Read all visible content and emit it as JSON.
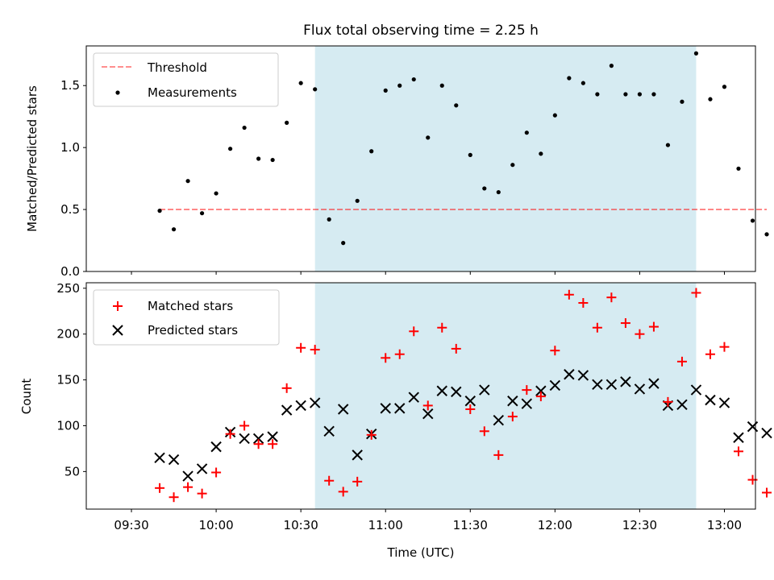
{
  "title": "Flux total observing time = 2.25 h",
  "chart_data": [
    {
      "type": "scatter",
      "panel": "top",
      "title": "Flux total observing time = 2.25 h",
      "ylabel": "Matched/Predicted stars",
      "xlabel": "",
      "xlim": [
        -16,
        221
      ],
      "ylim": [
        0,
        1.82
      ],
      "yticks": [
        0.0,
        0.5,
        1.0,
        1.5
      ],
      "ytick_labels": [
        "0.0",
        "0.5",
        "1.0",
        "1.5"
      ],
      "shaded_span": [
        65,
        200
      ],
      "shade_color": "#add8e6",
      "threshold": {
        "label": "Threshold",
        "value": 0.5,
        "x_range": [
          10,
          225
        ],
        "color": "#ff0000"
      },
      "series": [
        {
          "name": "Measurements",
          "marker": "dot",
          "color": "#000000",
          "x": [
            10,
            15,
            20,
            25,
            30,
            35,
            40,
            45,
            50,
            55,
            60,
            65,
            70,
            75,
            80,
            85,
            90,
            95,
            100,
            105,
            110,
            115,
            120,
            125,
            130,
            135,
            140,
            145,
            150,
            155,
            160,
            165,
            170,
            175,
            180,
            185,
            190,
            195,
            200,
            205,
            210,
            215,
            220,
            225
          ],
          "y": [
            0.49,
            0.34,
            0.73,
            0.47,
            0.63,
            0.99,
            1.16,
            0.91,
            0.9,
            1.2,
            1.52,
            1.47,
            0.42,
            0.23,
            0.57,
            0.97,
            1.46,
            1.5,
            1.55,
            1.08,
            1.5,
            1.34,
            0.94,
            0.67,
            0.64,
            0.86,
            1.12,
            0.95,
            1.26,
            1.56,
            1.52,
            1.43,
            1.66,
            1.43,
            1.43,
            1.43,
            1.02,
            1.37,
            1.76,
            1.39,
            1.49,
            0.83,
            0.41,
            0.3
          ]
        }
      ],
      "legend": {
        "location": "upper left",
        "entries": [
          "Threshold",
          "Measurements"
        ]
      }
    },
    {
      "type": "scatter",
      "panel": "bottom",
      "xlabel": "Time (UTC)",
      "ylabel": "Count",
      "xlim": [
        -16,
        221
      ],
      "ylim": [
        9,
        256
      ],
      "yticks": [
        50,
        100,
        150,
        200,
        250
      ],
      "ytick_labels": [
        "50",
        "100",
        "150",
        "200",
        "250"
      ],
      "xticks": [
        0,
        30,
        60,
        90,
        120,
        150,
        180,
        210
      ],
      "xtick_labels": [
        "09:30",
        "10:00",
        "10:30",
        "11:00",
        "11:30",
        "12:00",
        "12:30",
        "13:00"
      ],
      "shaded_span": [
        65,
        200
      ],
      "shade_color": "#add8e6",
      "series": [
        {
          "name": "Matched stars",
          "marker": "plus",
          "color": "#ff0000",
          "x": [
            10,
            15,
            20,
            25,
            30,
            35,
            40,
            45,
            50,
            55,
            60,
            65,
            70,
            75,
            80,
            85,
            90,
            95,
            100,
            105,
            110,
            115,
            120,
            125,
            130,
            135,
            140,
            145,
            150,
            155,
            160,
            165,
            170,
            175,
            180,
            185,
            190,
            195,
            200,
            205,
            210,
            215,
            220,
            225
          ],
          "y": [
            32,
            22,
            33,
            26,
            49,
            91,
            100,
            80,
            80,
            141,
            185,
            183,
            40,
            28,
            39,
            90,
            174,
            178,
            203,
            122,
            207,
            184,
            118,
            94,
            68,
            110,
            139,
            132,
            182,
            243,
            234,
            207,
            240,
            212,
            200,
            208,
            126,
            170,
            245,
            178,
            186,
            72,
            41,
            27
          ]
        },
        {
          "name": "Predicted stars",
          "marker": "x",
          "color": "#000000",
          "x": [
            10,
            15,
            20,
            25,
            30,
            35,
            40,
            45,
            50,
            55,
            60,
            65,
            70,
            75,
            80,
            85,
            90,
            95,
            100,
            105,
            110,
            115,
            120,
            125,
            130,
            135,
            140,
            145,
            150,
            155,
            160,
            165,
            170,
            175,
            180,
            185,
            190,
            195,
            200,
            205,
            210,
            215,
            220,
            225
          ],
          "y": [
            65,
            63,
            45,
            53,
            77,
            93,
            86,
            86,
            88,
            117,
            122,
            125,
            94,
            118,
            68,
            91,
            119,
            119,
            131,
            113,
            138,
            137,
            127,
            139,
            106,
            127,
            124,
            138,
            144,
            156,
            155,
            145,
            145,
            148,
            140,
            146,
            122,
            123,
            139,
            128,
            125,
            87,
            99,
            92
          ]
        }
      ],
      "legend": {
        "location": "upper left",
        "entries": [
          "Matched stars",
          "Predicted stars"
        ]
      }
    }
  ]
}
